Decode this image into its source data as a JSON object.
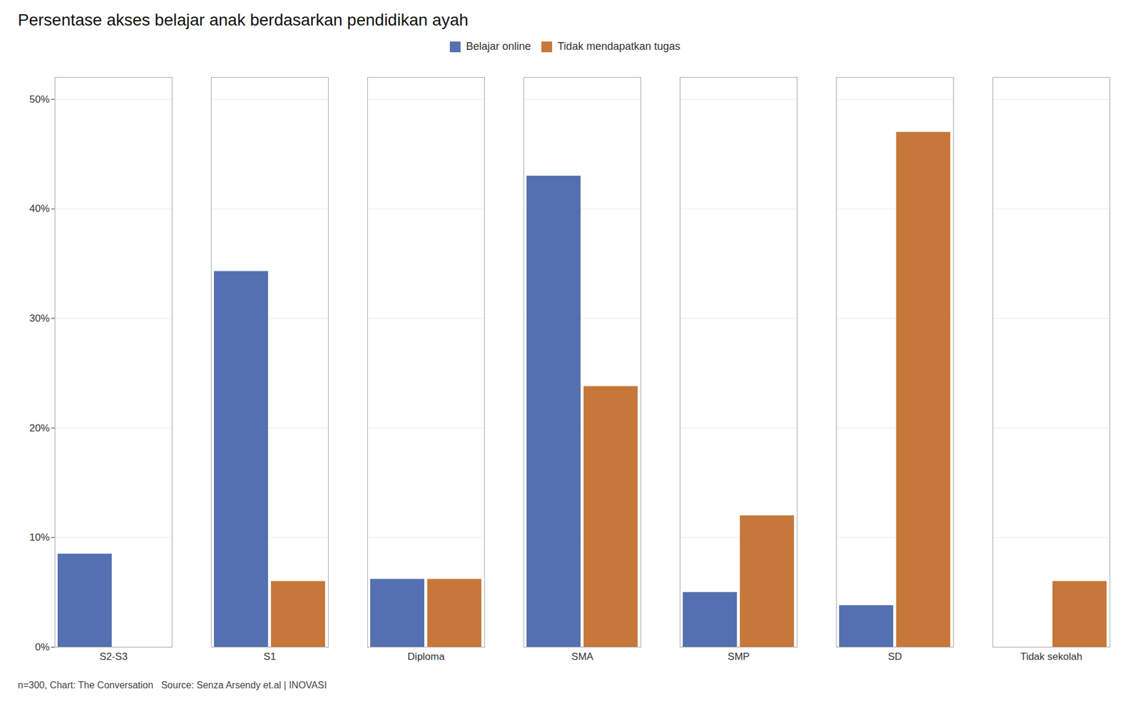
{
  "chart_data": {
    "type": "bar",
    "title": "Persentase akses belajar anak berdasarkan pendidikan ayah",
    "footnote": "n=300, Chart: The Conversation   Source: Senza Arsendy et.al | INOVASI",
    "categories": [
      "S2-S3",
      "S1",
      "Diploma",
      "SMA",
      "SMP",
      "SD",
      "Tidak sekolah"
    ],
    "series": [
      {
        "name": "Belajar online",
        "color": "#5470b0",
        "values": [
          8.5,
          34.3,
          6.2,
          43.0,
          5.0,
          3.8,
          0.0
        ]
      },
      {
        "name": "Tidak mendapatkan tugas",
        "color": "#c8773a",
        "values": [
          0.0,
          6.0,
          6.2,
          23.8,
          12.0,
          47.0,
          6.0
        ]
      }
    ],
    "ylim": [
      0,
      52
    ],
    "yticks": [
      {
        "value": 0,
        "label": "0%"
      },
      {
        "value": 10,
        "label": "10%"
      },
      {
        "value": 20,
        "label": "20%"
      },
      {
        "value": 30,
        "label": "30%"
      },
      {
        "value": 40,
        "label": "40%"
      },
      {
        "value": 50,
        "label": "50%"
      }
    ],
    "grid": true,
    "legend": "top"
  }
}
